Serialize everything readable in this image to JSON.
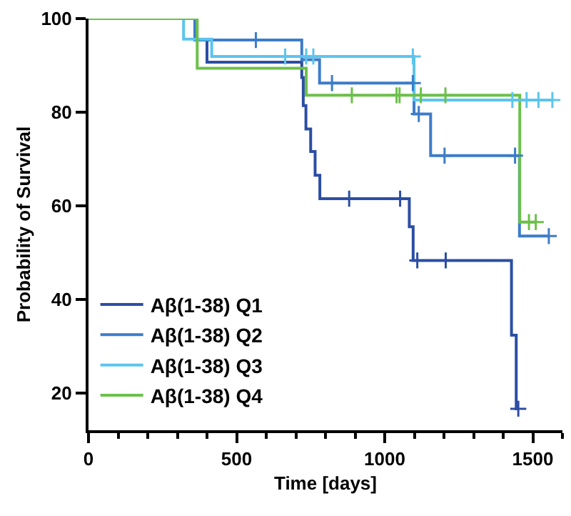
{
  "chart_data": {
    "type": "step",
    "xlabel": "Time [days]",
    "ylabel": "Probability of Survival",
    "xlim": [
      0,
      1600
    ],
    "xticks": [
      0,
      500,
      1000,
      1500
    ],
    "ylim": [
      12,
      100
    ],
    "yticks": [
      20,
      40,
      60,
      80,
      100
    ],
    "legend": "bottom left",
    "line_style": "solid",
    "series": [
      {
        "name": "Aβ(1-38) Q1",
        "color": "#2c4ea3",
        "x": [
          0,
          359,
          400,
          720,
          725,
          734,
          750,
          765,
          781,
          1083,
          1096,
          1428,
          1444,
          1451
        ],
        "values": [
          100,
          95.4,
          90.7,
          87.4,
          81.4,
          76.4,
          71.6,
          66.5,
          61.5,
          55.5,
          48.3,
          32.3,
          16.6,
          16.6
        ]
      },
      {
        "name": "Aβ(1-38) Q2",
        "color": "#3d7cc9",
        "x": [
          0,
          359,
          720,
          780,
          1099,
          1155,
          1455,
          1554
        ],
        "values": [
          100,
          95.4,
          91.2,
          86.2,
          79.6,
          70.7,
          53.5,
          53.5
        ]
      },
      {
        "name": "Aβ(1-38) Q3",
        "color": "#5bc5ee",
        "x": [
          0,
          321,
          416,
          1099,
          1566
        ],
        "values": [
          100,
          95.6,
          91.9,
          82.6,
          82.6
        ]
      },
      {
        "name": "Aβ(1-38) Q4",
        "color": "#6cc04a",
        "x": [
          0,
          367,
          735,
          1456,
          1510
        ],
        "values": [
          100,
          89.4,
          83.6,
          56.5,
          56.5
        ]
      },
      {
        "type": "scatter",
        "marker": "cross",
        "color": "#2c4ea3",
        "x": [
          880,
          1052,
          1110,
          1206,
          1451
        ],
        "values": [
          61.5,
          61.5,
          48.3,
          48.3,
          16.6
        ]
      },
      {
        "type": "scatter",
        "marker": "cross",
        "color": "#3d7cc9",
        "x": [
          565,
          822,
          1095,
          1115,
          1202,
          1440,
          1554
        ],
        "values": [
          95.4,
          86.2,
          86.2,
          79.6,
          70.7,
          70.7,
          53.5
        ]
      },
      {
        "type": "scatter",
        "marker": "cross",
        "color": "#5bc5ee",
        "x": [
          664,
          735,
          759,
          1095,
          1431,
          1479,
          1519,
          1566
        ],
        "values": [
          91.9,
          91.9,
          91.9,
          91.9,
          82.6,
          82.6,
          82.6,
          82.6
        ]
      },
      {
        "type": "scatter",
        "marker": "cross",
        "color": "#6cc04a",
        "x": [
          889,
          1040,
          1050,
          1122,
          1205,
          1487,
          1510
        ],
        "values": [
          83.6,
          83.6,
          83.6,
          83.6,
          83.6,
          56.5,
          56.5
        ]
      }
    ]
  }
}
